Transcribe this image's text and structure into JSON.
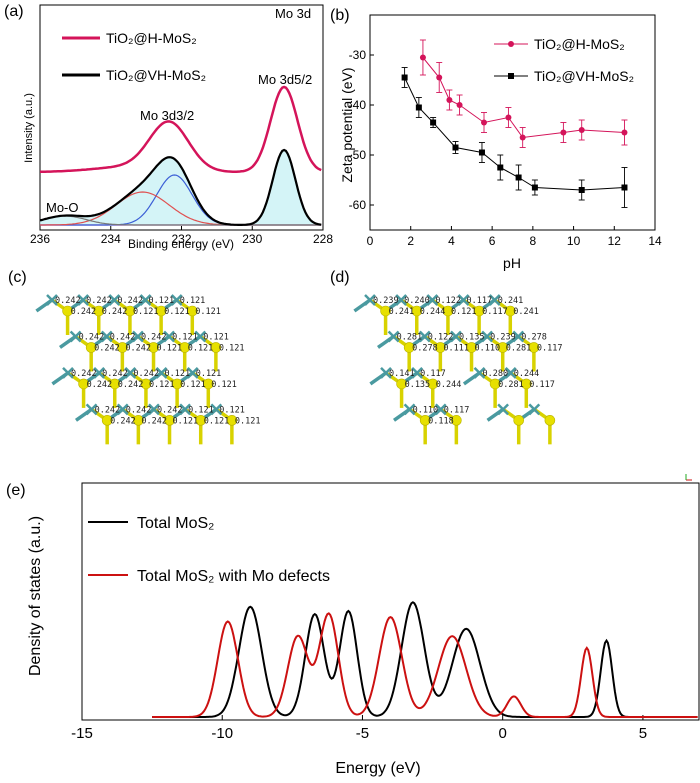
{
  "panel_labels": {
    "a": "(a)",
    "b": "(b)",
    "c": "(c)",
    "d": "(d)",
    "e": "(e)"
  },
  "colors": {
    "mo": "#4a9aa0",
    "s": "#e7e000",
    "bond_s": "#d8d200",
    "pink": "#d4145a",
    "red": "#cc1111",
    "black": "#000000",
    "cyan_fill": "#b9eef2",
    "blue": "#3c5fd6",
    "red_peak": "#e05050"
  },
  "chart_data": [
    {
      "id": "a",
      "type": "line",
      "title": "",
      "xlabel": "Binding energy (eV)",
      "ylabel": "Intensity (a.u.)",
      "xlim": [
        236,
        228
      ],
      "x_ticks": [
        "236",
        "234",
        "232",
        "230",
        "228"
      ],
      "legend": [
        {
          "name": "TiO₂@H-MoS₂",
          "color": "#d4145a"
        },
        {
          "name": "TiO₂@VH-MoS₂",
          "color": "#000000"
        }
      ],
      "annotations": {
        "mo3d": "Mo 3d",
        "mo3d52": "Mo 3d5/2",
        "mo3d32": "Mo 3d3/2",
        "moo": "Mo-O"
      },
      "peaks": [
        {
          "name": "Mo 3d3/2",
          "center": 232.3,
          "fwhm": 1.1
        },
        {
          "name": "Mo 3d5/2",
          "center": 229.1,
          "fwhm": 0.9
        },
        {
          "name": "Mo-O",
          "center": 235.3,
          "fwhm": 1.6
        },
        {
          "name": "Mo 3d (Mo-O)",
          "center": 233.1,
          "fwhm": 1.6
        }
      ]
    },
    {
      "id": "b",
      "type": "line",
      "xlabel": "pH",
      "ylabel": "Zeta potential (eV)",
      "xlim": [
        0,
        14
      ],
      "ylim": [
        -65,
        -22
      ],
      "x_ticks": [
        "0",
        "2",
        "4",
        "6",
        "8",
        "10",
        "12",
        "14"
      ],
      "y_ticks": [
        "-30",
        "-40",
        "-50",
        "-60"
      ],
      "series": [
        {
          "name": "TiO₂@H-MoS₂",
          "color": "#d4145a",
          "marker": "circle",
          "x": [
            2.6,
            3.4,
            3.9,
            4.4,
            5.6,
            6.8,
            7.5,
            9.5,
            10.4,
            12.5
          ],
          "y": [
            -30.5,
            -34.5,
            -39.0,
            -40.0,
            -43.5,
            -42.5,
            -46.5,
            -45.5,
            -45.0,
            -45.5
          ],
          "err": [
            3.5,
            3.0,
            2.0,
            2.0,
            2.0,
            2.0,
            2.0,
            2.0,
            2.0,
            2.5
          ]
        },
        {
          "name": "TiO₂@VH-MoS₂",
          "color": "#000000",
          "marker": "square",
          "x": [
            1.7,
            2.4,
            3.1,
            4.2,
            5.5,
            6.4,
            7.3,
            8.1,
            10.4,
            12.5
          ],
          "y": [
            -34.5,
            -40.5,
            -43.5,
            -48.5,
            -49.5,
            -52.5,
            -54.5,
            -56.5,
            -57.0,
            -56.5
          ],
          "err": [
            2.0,
            2.0,
            1.0,
            1.2,
            2.0,
            2.5,
            2.5,
            1.5,
            2.0,
            4.0
          ]
        }
      ]
    },
    {
      "id": "e",
      "type": "line",
      "xlabel": "Energy (eV)",
      "ylabel": "Density of states (a.u.)",
      "xlim": [
        -15,
        7
      ],
      "x_ticks": [
        "-15",
        "-10",
        "-5",
        "0",
        "5"
      ],
      "series": [
        {
          "name": "Total MoS₂",
          "color": "#000000",
          "peaks": [
            [
              -9.0,
              0.75,
              0.9
            ],
            [
              -6.7,
              0.7,
              0.75
            ],
            [
              -5.5,
              0.72,
              0.7
            ],
            [
              -3.2,
              0.78,
              0.9
            ],
            [
              -1.3,
              0.6,
              1.1
            ],
            [
              3.7,
              0.52,
              0.45
            ]
          ]
        },
        {
          "name": "Total MoS₂ with Mo defects",
          "color": "#cc1111",
          "peaks": [
            [
              -9.8,
              0.65,
              0.8
            ],
            [
              -7.3,
              0.55,
              0.8
            ],
            [
              -6.2,
              0.7,
              0.75
            ],
            [
              -4.0,
              0.68,
              0.9
            ],
            [
              -1.8,
              0.55,
              1.1
            ],
            [
              0.4,
              0.14,
              0.55
            ],
            [
              3.0,
              0.47,
              0.45
            ]
          ]
        }
      ]
    }
  ],
  "structure_c": {
    "labels": [
      "0.242",
      "0.242",
      "0.242",
      "0.242",
      "0.242",
      "0.121",
      "0.121",
      "0.121",
      "0.121",
      "0.121",
      "0.242",
      "0.242",
      "0.242",
      "0.242",
      "0.242",
      "0.121",
      "0.121",
      "0.121",
      "0.121",
      "0.121",
      "0.242",
      "0.242",
      "0.242",
      "0.242",
      "0.242",
      "0.121",
      "0.121",
      "0.121",
      "0.121",
      "0.121",
      "0.242",
      "0.242",
      "0.242",
      "0.242",
      "0.242",
      "0.121",
      "0.121",
      "0.121",
      "0.121",
      "0.121"
    ]
  },
  "structure_d": {
    "labels": [
      "0.239",
      "0.241",
      "0.240",
      "0.244",
      "0.122",
      "0.121",
      "0.117",
      "0.117",
      "0.241",
      "0.241",
      "0.281",
      "0.278",
      "0.122",
      "0.111",
      "0.135",
      "0.110",
      "0.239",
      "0.281",
      "0.278",
      "0.117",
      "0.141",
      "0.135",
      "0.117",
      "0.244",
      "0.280",
      "0.281",
      "0.244",
      "0.117",
      "0.110",
      "0.118",
      "0.117"
    ]
  }
}
